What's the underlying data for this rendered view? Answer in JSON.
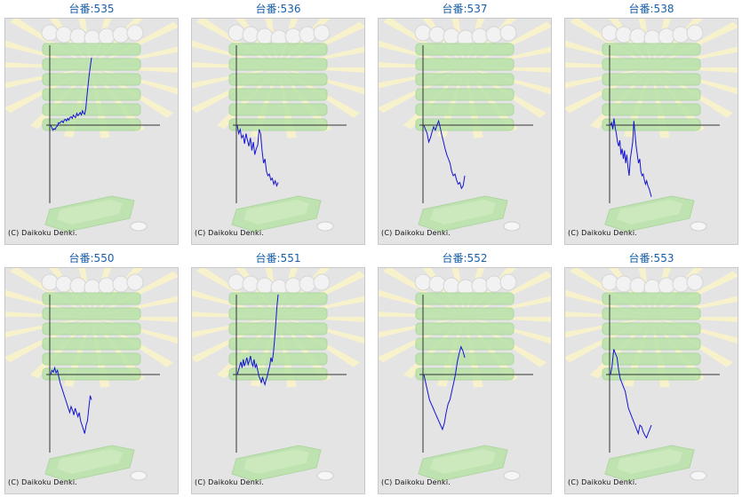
{
  "credit": "(C) Daikoku Denki.",
  "colors": {
    "line": "#1414d2",
    "axis": "#333333",
    "title": "#1a5fa8",
    "panel_bg": "#e4e4e4",
    "decor_green": "#b9e2a9",
    "decor_yellow": "#fbf5c8"
  },
  "machines": [
    {
      "title": "台番:535",
      "trend": [
        0,
        -3,
        -6,
        -4,
        -5,
        -2,
        -1,
        3,
        2,
        4,
        5,
        3,
        6,
        7,
        5,
        8,
        6,
        9,
        10,
        8,
        12,
        10,
        9,
        14,
        11,
        13,
        15,
        12,
        17,
        14,
        13,
        20,
        35,
        48,
        60,
        70,
        80
      ]
    },
    {
      "title": "台番:536",
      "trend": [
        0,
        -10,
        -5,
        -15,
        -12,
        -22,
        -10,
        -18,
        -25,
        -15,
        -30,
        -20,
        -35,
        -28,
        -24,
        -5,
        -10,
        -30,
        -45,
        -40,
        -55,
        -60,
        -58,
        -65,
        -63,
        -70,
        -66,
        -72,
        -68
      ]
    },
    {
      "title": "台番:537",
      "trend": [
        0,
        -5,
        -10,
        -20,
        -15,
        -8,
        -2,
        -6,
        0,
        5,
        -3,
        -12,
        -20,
        -28,
        -35,
        -40,
        -45,
        -55,
        -60,
        -58,
        -65,
        -70,
        -68,
        -75,
        -72,
        -60
      ]
    },
    {
      "title": "台番:538",
      "trend": [
        0,
        3,
        -5,
        8,
        -3,
        -10,
        -20,
        -25,
        -18,
        -35,
        -28,
        -40,
        -30,
        -45,
        -35,
        -50,
        -60,
        -40,
        -30,
        -20,
        5,
        -10,
        -25,
        -35,
        -45,
        -40,
        -55,
        -60,
        -58,
        -65,
        -70,
        -66,
        -72,
        -75,
        -80,
        -85
      ]
    },
    {
      "title": "台番:550",
      "trend": [
        0,
        5,
        3,
        8,
        2,
        5,
        -3,
        -10,
        -15,
        -20,
        -25,
        -30,
        -35,
        -40,
        -45,
        -38,
        -42,
        -48,
        -40,
        -45,
        -50,
        -45,
        -55,
        -60,
        -65,
        -70,
        -60,
        -55,
        -40,
        -25,
        -30
      ]
    },
    {
      "title": "台番:551",
      "trend": [
        0,
        5,
        10,
        15,
        8,
        18,
        10,
        15,
        20,
        12,
        16,
        22,
        14,
        10,
        18,
        8,
        12,
        5,
        -2,
        -5,
        -10,
        -3,
        -8,
        -12,
        -6,
        -2,
        5,
        10,
        20,
        15,
        25,
        40,
        60,
        80,
        95
      ]
    },
    {
      "title": "台番:552",
      "trend": [
        0,
        -10,
        -20,
        -30,
        -35,
        -40,
        -45,
        -50,
        -55,
        -60,
        -65,
        -58,
        -45,
        -35,
        -30,
        -20,
        -10,
        0,
        15,
        25,
        33,
        28,
        20
      ]
    },
    {
      "title": "台番:553",
      "trend": [
        0,
        10,
        30,
        25,
        20,
        5,
        -5,
        -10,
        -15,
        -20,
        -30,
        -40,
        -45,
        -50,
        -55,
        -60,
        -65,
        -70,
        -60,
        -62,
        -68,
        -72,
        -75,
        -70,
        -65,
        -60
      ]
    }
  ]
}
